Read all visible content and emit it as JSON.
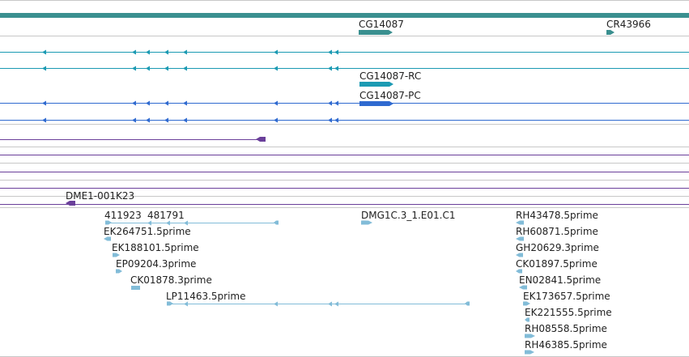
{
  "colors": {
    "gene": "#3a8f8f",
    "transcript_teal": "#1b9ab3",
    "transcript_blue": "#2f6ad0",
    "purple": "#6a3f9a",
    "est": "#82bcd8",
    "separator": "#c8c8c8"
  },
  "genes": {
    "cg14087": "CG14087",
    "cr43966": "CR43966"
  },
  "transcripts": {
    "rc": "CG14087-RC",
    "pc": "CG14087-PC"
  },
  "clone": {
    "label": "DME1-001K23"
  },
  "est_labels": {
    "e411923": "411923",
    "e481791": "481791",
    "ek264751": "EK264751.5prime",
    "ek188101": "EK188101.5prime",
    "ep09204": "EP09204.3prime",
    "ck01878": "CK01878.3prime",
    "lp11463": "LP11463.5prime",
    "dmg1c3": "DMG1C.3_1.E01.C1",
    "rh43478": "RH43478.5prime",
    "rh60871": "RH60871.5prime",
    "gh20629": "GH20629.3prime",
    "ck01897": "CK01897.5prime",
    "en02841": "EN02841.5prime",
    "ek173657": "EK173657.5prime",
    "ek221555": "EK221555.5prime",
    "rh08558": "RH08558.5prime",
    "rh46385": "RH46385.5prime"
  }
}
